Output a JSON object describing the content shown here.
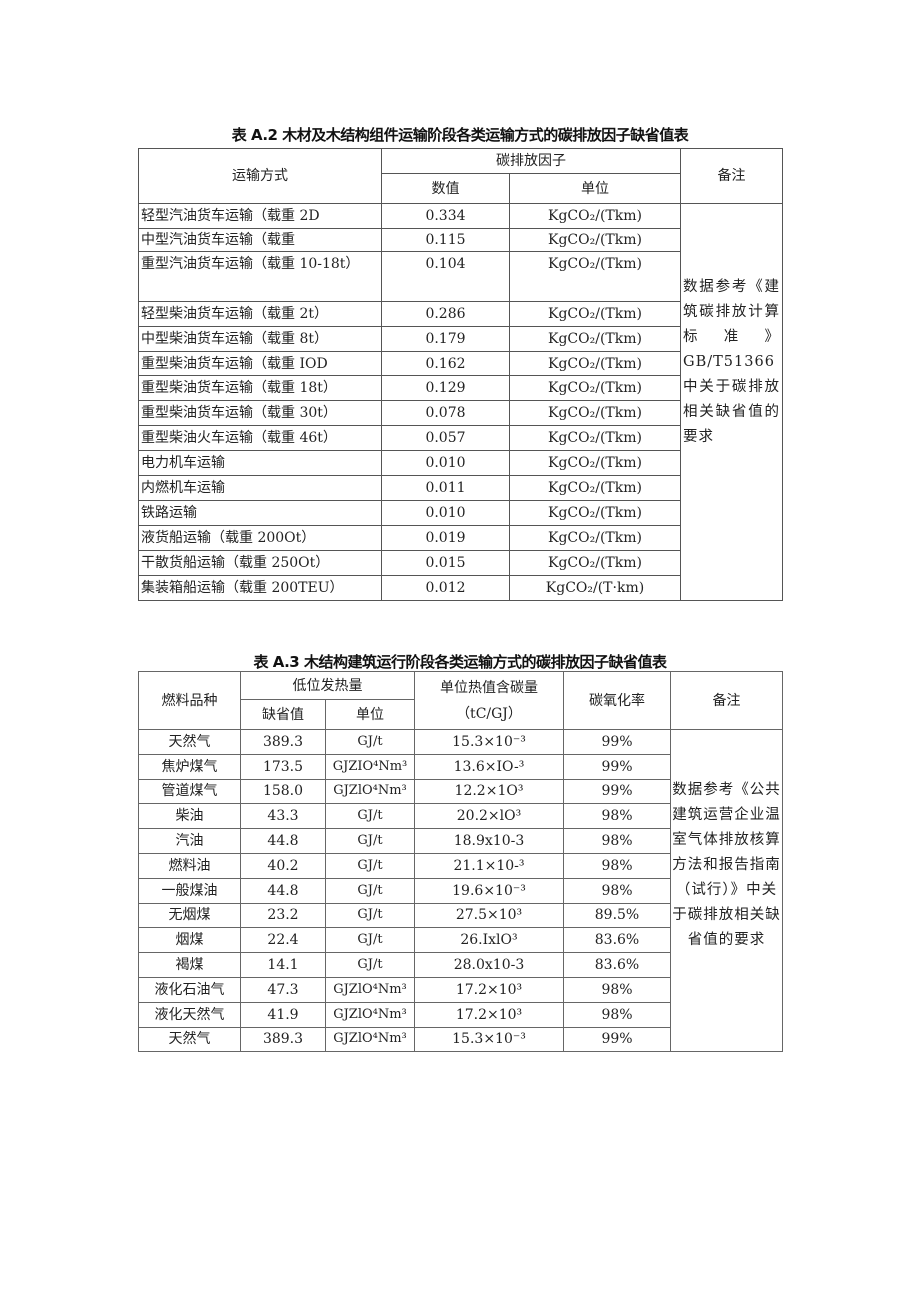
{
  "table_a2": {
    "title": "表 A.2 木材及木结构组件运输阶段各类运输方式的碳排放因子缺省值表",
    "headers": {
      "mode": "运输方式",
      "factor": "碳排放因子",
      "value": "数值",
      "unit": "单位",
      "remark": "备注"
    },
    "rows": [
      {
        "mode": "轻型汽油货车运输（载重 2D",
        "value": "0.334",
        "unit": "KgCO₂/(Tkm)"
      },
      {
        "mode": "中型汽油货车运输（载重",
        "value": "0.115",
        "unit": "KgCO₂/(Tkm)"
      },
      {
        "mode": "重型汽油货车运输（载重 10-18t）",
        "value": "0.104",
        "unit": "KgCO₂/(Tkm)"
      },
      {
        "mode": "轻型柴油货车运输（载重 2t）",
        "value": "0.286",
        "unit": "KgCO₂/(Tkm)"
      },
      {
        "mode": "中型柴油货车运输（载重 8t）",
        "value": "0.179",
        "unit": "KgCO₂/(Tkm)"
      },
      {
        "mode": "重型柴油货车运输（载重 IOD",
        "value": "0.162",
        "unit": "KgCO₂/(Tkm)"
      },
      {
        "mode": "重型柴油货车运输（载重 18t）",
        "value": "0.129",
        "unit": "KgCO₂/(Tkm)"
      },
      {
        "mode": "重型柴油货车运输（载重 30t）",
        "value": "0.078",
        "unit": "KgCO₂/(Tkm)"
      },
      {
        "mode": "重型柴油火车运输（载重 46t）",
        "value": "0.057",
        "unit": "KgCO₂/(Tkm)"
      },
      {
        "mode": "电力机车运输",
        "value": "0.010",
        "unit": "KgCO₂/(Tkm)"
      },
      {
        "mode": "内燃机车运输",
        "value": "0.011",
        "unit": "KgCO₂/(Tkm)"
      },
      {
        "mode": "铁路运输",
        "value": "0.010",
        "unit": "KgCO₂/(Tkm)"
      },
      {
        "mode": "液货船运输（载重 200Ot）",
        "value": "0.019",
        "unit": "KgCO₂/(Tkm)"
      },
      {
        "mode": "干散货船运输（载重 250Ot）",
        "value": "0.015",
        "unit": "KgCO₂/(Tkm)"
      },
      {
        "mode": "集装箱船运输（载重 200TEU）",
        "value": "0.012",
        "unit": "KgCO₂/(T·km)"
      }
    ],
    "remark": "数据参考《建筑碳排放计算标 准 》GB/T51366 中关于碳排放相关缺省值的要求"
  },
  "table_a3": {
    "title": "表 A.3 木结构建筑运行阶段各类运输方式的碳排放因子缺省值表",
    "headers": {
      "fuel": "燃料品种",
      "heat": "低位发热量",
      "default": "缺省值",
      "unit": "单位",
      "carbon": "单位热值含碳量（tC/GJ）",
      "oxidation": "碳氧化率",
      "remark": "备注"
    },
    "rows": [
      {
        "fuel": "天然气",
        "default": "389.3",
        "unit": "GJ/t",
        "carbon": "15.3×10⁻³",
        "oxidation": "99%"
      },
      {
        "fuel": "焦炉煤气",
        "default": "173.5",
        "unit": "GJZIO⁴Nm³",
        "carbon": "13.6×IO-³",
        "oxidation": "99%"
      },
      {
        "fuel": "管道煤气",
        "default": "158.0",
        "unit": "GJZlO⁴Nm³",
        "carbon": "12.2×1O³",
        "oxidation": "99%"
      },
      {
        "fuel": "柴油",
        "default": "43.3",
        "unit": "GJ/t",
        "carbon": "20.2×lO³",
        "oxidation": "98%"
      },
      {
        "fuel": "汽油",
        "default": "44.8",
        "unit": "GJ/t",
        "carbon": "18.9x10-3",
        "oxidation": "98%"
      },
      {
        "fuel": "燃料油",
        "default": "40.2",
        "unit": "GJ/t",
        "carbon": "21.1×10-³",
        "oxidation": "98%"
      },
      {
        "fuel": "一般煤油",
        "default": "44.8",
        "unit": "GJ/t",
        "carbon": "19.6×10⁻³",
        "oxidation": "98%"
      },
      {
        "fuel": "无烟煤",
        "default": "23.2",
        "unit": "GJ/t",
        "carbon": "27.5×10³",
        "oxidation": "89.5%"
      },
      {
        "fuel": "烟煤",
        "default": "22.4",
        "unit": "GJ/t",
        "carbon": "26.IxlO³",
        "oxidation": "83.6%"
      },
      {
        "fuel": "褐煤",
        "default": "14.1",
        "unit": "GJ/t",
        "carbon": "28.0x10-3",
        "oxidation": "83.6%"
      },
      {
        "fuel": "液化石油气",
        "default": "47.3",
        "unit": "GJZlO⁴Nm³",
        "carbon": "17.2×10³",
        "oxidation": "98%"
      },
      {
        "fuel": "液化天然气",
        "default": "41.9",
        "unit": "GJZlO⁴Nm³",
        "carbon": "17.2×10³",
        "oxidation": "98%"
      },
      {
        "fuel": "天然气",
        "default": "389.3",
        "unit": "GJZlO⁴Nm³",
        "carbon": "15.3×10⁻³",
        "oxidation": "99%"
      }
    ],
    "remark": "数据参考《公共建筑运营企业温室气体排放核算方法和报告指南（试行）》中关于碳排放相关缺省值的要求"
  }
}
